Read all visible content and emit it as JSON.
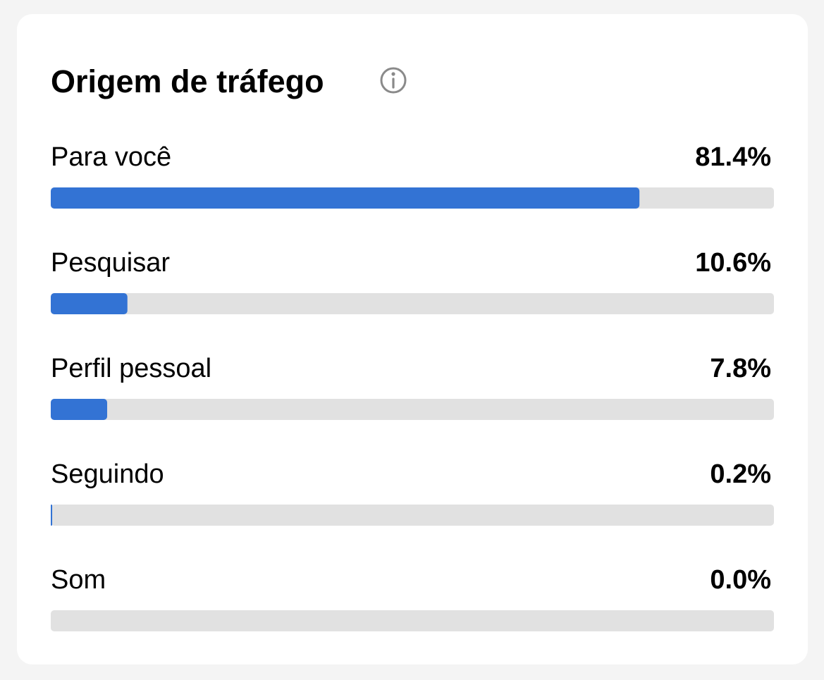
{
  "chart_data": {
    "type": "bar",
    "title": "Origem de tráfego",
    "categories": [
      "Para você",
      "Pesquisar",
      "Perfil pessoal",
      "Seguindo",
      "Som"
    ],
    "values": [
      81.4,
      10.6,
      7.8,
      0.2,
      0.0
    ],
    "value_labels": [
      "81.4%",
      "10.6%",
      "7.8%",
      "0.2%",
      "0.0%"
    ],
    "xlim": [
      0,
      100
    ],
    "color": "#3373d4"
  }
}
